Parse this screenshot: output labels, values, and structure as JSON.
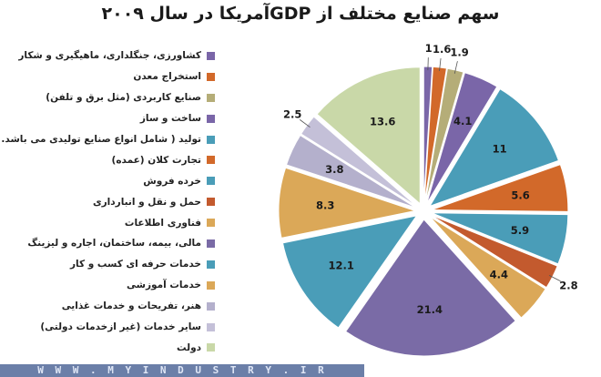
{
  "chart_data": {
    "type": "pie",
    "title": "سهم صنایع مختلف از GDPآمریکا در سال ۲۰۰۹",
    "legend_position": "left",
    "series": [
      {
        "name": "کشاورزی، جنگلداری، ماهیگیری و شکار",
        "value": 1,
        "label": "1",
        "color": "#7a66a8"
      },
      {
        "name": "استخراج معدن",
        "value": 1.6,
        "label": "1.6",
        "color": "#d2692a"
      },
      {
        "name": "صنایع کاربردی (مثل برق و تلفن)",
        "value": 1.9,
        "label": "1.9",
        "color": "#b5ad78"
      },
      {
        "name": "ساخت و ساز",
        "value": 4.1,
        "label": "4.1",
        "color": "#7a66a8"
      },
      {
        "name": "تولید ( شامل انواع صنایع تولیدی می باشد. )",
        "value": 11,
        "label": "11",
        "color": "#4a9db8"
      },
      {
        "name": "تجارت کلان (عمده)",
        "value": 5.6,
        "label": "5.6",
        "color": "#d2692a"
      },
      {
        "name": "خرده فروش",
        "value": 5.9,
        "label": "5.9",
        "color": "#4a9db8"
      },
      {
        "name": "حمل و نقل و انبارداری",
        "value": 2.8,
        "label": "2.8",
        "color": "#c35a2e"
      },
      {
        "name": "فناوری اطلاعات",
        "value": 4.4,
        "label": "4.4",
        "color": "#dba858"
      },
      {
        "name": "مالی، بیمه، ساختمان، اجاره و لیزینگ",
        "value": 21.4,
        "label": "21.4",
        "color": "#7a6ba6"
      },
      {
        "name": "خدمات حرفه ای کسب و کار",
        "value": 12.1,
        "label": "12.1",
        "color": "#4a9db8"
      },
      {
        "name": "خدمات آموزشی",
        "value": 8.3,
        "label": "8.3",
        "color": "#dba858"
      },
      {
        "name": "هنر، تفریحات و خدمات غذایی",
        "value": 3.8,
        "label": "3.8",
        "color": "#b4b0cc"
      },
      {
        "name": "سایر خدمات (غیر ازخدمات دولتی)",
        "value": 2.5,
        "label": "2.5",
        "color": "#c4c0d8"
      },
      {
        "name": "دولت",
        "value": 13.6,
        "label": "13.6",
        "color": "#c9d8a8"
      }
    ]
  },
  "watermark": {
    "site": "W W W . M Y I N D U S T R Y . I R"
  }
}
